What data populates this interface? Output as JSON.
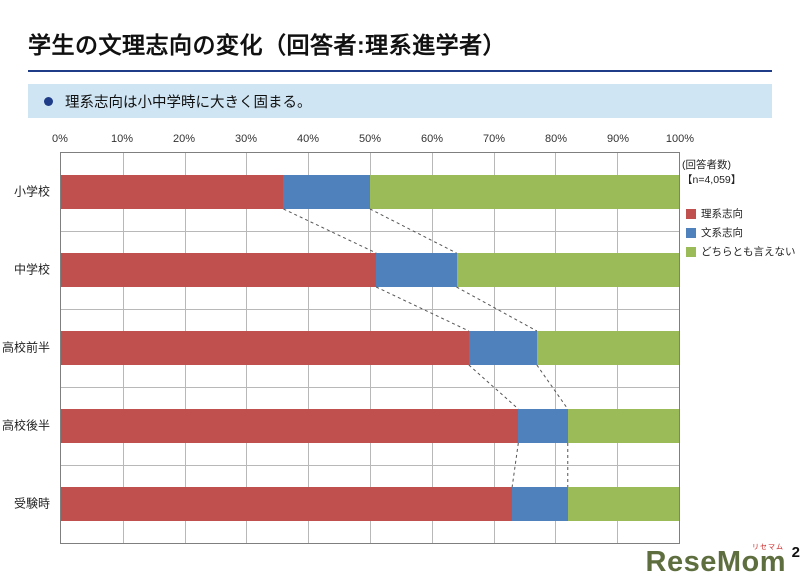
{
  "title": "学生の文理志向の変化（回答者:理系進学者）",
  "callout": {
    "text": "理系志向は小中学時に大きく固まる。"
  },
  "respondents": {
    "line1": "(回答者数)",
    "line2": "【n=4,059】"
  },
  "colors": {
    "rule": "#1f3c88",
    "callout_bg": "#cfe5f3",
    "series_red": "#C0504D",
    "series_blue": "#4F81BD",
    "series_green": "#9BBB59"
  },
  "chart_data": {
    "type": "bar",
    "orientation": "horizontal",
    "stacked": true,
    "grid": true,
    "legend_position": "right",
    "xlim": [
      0,
      100
    ],
    "x_ticks": [
      "0%",
      "10%",
      "20%",
      "30%",
      "40%",
      "50%",
      "60%",
      "70%",
      "80%",
      "90%",
      "100%"
    ],
    "categories": [
      "小学校",
      "中学校",
      "高校前半",
      "高校後半",
      "受験時"
    ],
    "series": [
      {
        "key": "science",
        "name": "理系志向",
        "color": "#C0504D",
        "values": [
          36,
          51,
          66,
          74,
          73
        ]
      },
      {
        "key": "humanities",
        "name": "文系志向",
        "color": "#4F81BD",
        "values": [
          14,
          13,
          11,
          8,
          9
        ]
      },
      {
        "key": "neither",
        "name": "どちらとも言えない",
        "color": "#9BBB59",
        "values": [
          50,
          36,
          23,
          18,
          18
        ]
      }
    ]
  },
  "watermark": {
    "text": "ReseMom",
    "ruby": "リセマム"
  },
  "page_number": "2"
}
